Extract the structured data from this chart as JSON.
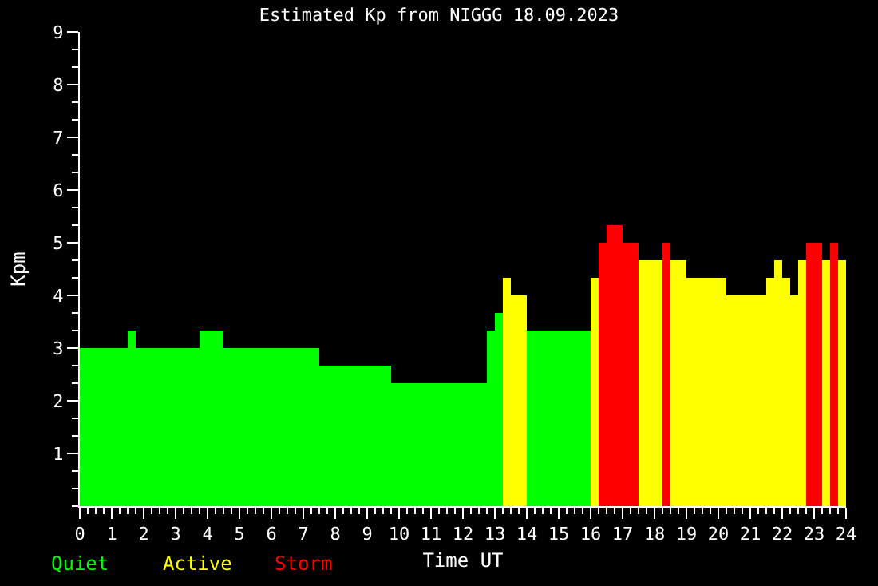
{
  "chart_data": {
    "type": "bar",
    "title": "Estimated Kp from NIGGG 18.09.2023",
    "xlabel": "Time UT",
    "ylabel": "Kpm",
    "xlim": [
      0,
      24
    ],
    "xticks": [
      0,
      1,
      2,
      3,
      4,
      5,
      6,
      7,
      8,
      9,
      10,
      11,
      12,
      13,
      14,
      15,
      16,
      17,
      18,
      19,
      20,
      21,
      22,
      23,
      24
    ],
    "ylim": [
      0,
      9
    ],
    "yticks": [
      1,
      2,
      3,
      4,
      5,
      6,
      7,
      8,
      9
    ],
    "grid": false,
    "legend": "bottom left",
    "series": [
      {
        "name": "Quiet",
        "color": "#00ff00",
        "x": [
          0.75,
          1.625,
          2.75,
          4.125,
          6,
          8.625,
          11.25,
          12.875,
          13.125,
          15
        ],
        "values": [
          3,
          3.33,
          3,
          3.33,
          3,
          2.67,
          2.33,
          3.33,
          3.67,
          3.33
        ]
      },
      {
        "name": "Active",
        "color": "#ffff00",
        "x": [
          13.375,
          13.75,
          16.125,
          17.875,
          18.75,
          19.625,
          20.875,
          21.625,
          21.875,
          22.125,
          22.375,
          22.625,
          23.375,
          23.875
        ],
        "values": [
          4.33,
          4,
          4.33,
          4.67,
          4.67,
          4.33,
          4,
          4.33,
          4.67,
          4.33,
          4,
          4.67,
          4.67,
          4.67
        ]
      },
      {
        "name": "Storm",
        "color": "#ff0000",
        "x": [
          16.375,
          16.75,
          17.25,
          18.375,
          23,
          23.625
        ],
        "values": [
          5,
          5.33,
          5,
          5,
          5,
          5
        ]
      }
    ]
  }
}
